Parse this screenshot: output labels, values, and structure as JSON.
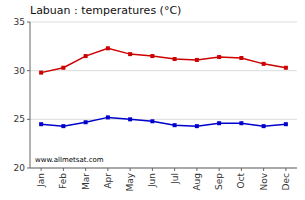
{
  "chart_data": {
    "type": "line",
    "title": "Labuan : temperatures (°C)",
    "categories": [
      "Jan",
      "Feb",
      "Mar",
      "Apr",
      "May",
      "Jun",
      "Jul",
      "Aug",
      "Sep",
      "Oct",
      "Nov",
      "Dec"
    ],
    "series": [
      {
        "color": "#cc0000",
        "marker": "square",
        "values": [
          29.8,
          30.3,
          31.5,
          32.3,
          31.7,
          31.5,
          31.2,
          31.1,
          31.4,
          31.3,
          30.7,
          30.3
        ]
      },
      {
        "color": "#0000cc",
        "marker": "square",
        "values": [
          24.5,
          24.3,
          24.7,
          25.2,
          25.0,
          24.8,
          24.4,
          24.3,
          24.6,
          24.6,
          24.3,
          24.5
        ]
      }
    ],
    "ylim": [
      20,
      35
    ],
    "yticks": [
      20,
      25,
      30,
      35
    ],
    "grid": true,
    "annotations": [
      "www.allmetsat.com"
    ]
  }
}
